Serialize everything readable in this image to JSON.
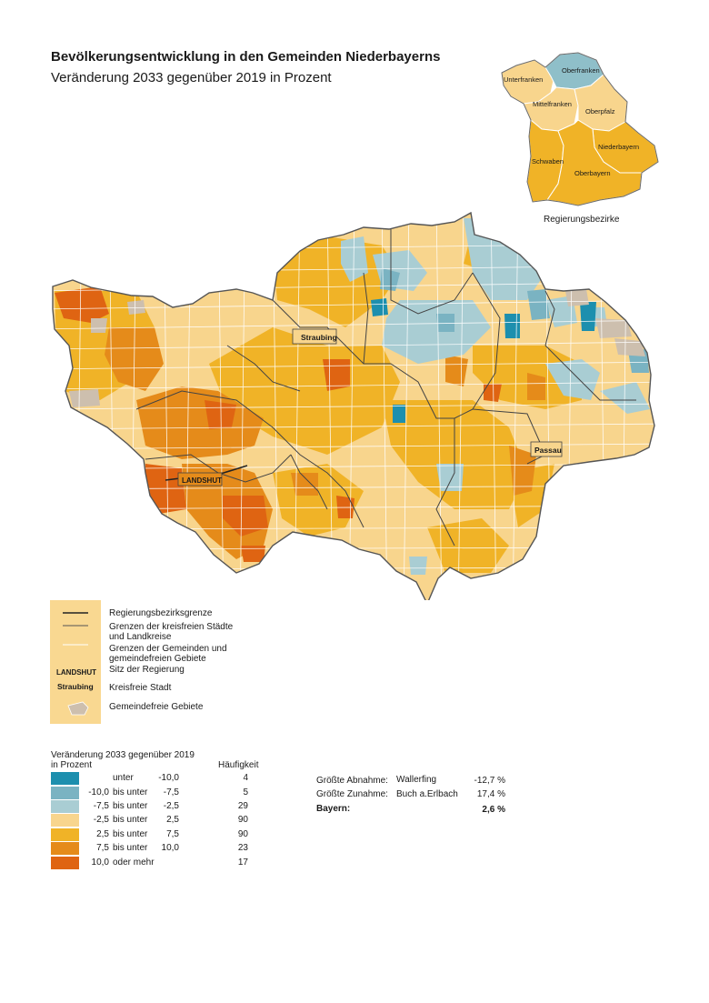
{
  "title": "Bevölkerungsentwicklung in den Gemeinden Niederbayerns",
  "subtitle": "Veränderung 2033 gegenüber 2019 in Prozent",
  "inset": {
    "caption": "Regierungsbezirke",
    "regions": [
      {
        "name": "Oberfranken",
        "class": "minus7_5",
        "color": "#8fbfc9"
      },
      {
        "name": "Unterfranken",
        "class": "minus2_5",
        "color": "#f8d58d"
      },
      {
        "name": "Mittelfranken",
        "class": "minus2_5",
        "color": "#f8d58d"
      },
      {
        "name": "Oberpfalz",
        "class": "minus2_5",
        "color": "#f8d58d"
      },
      {
        "name": "Niederbayern",
        "class": "plus2_5",
        "color": "#f0b327"
      },
      {
        "name": "Schwaben",
        "class": "plus2_5",
        "color": "#f0b327"
      },
      {
        "name": "Oberbayern",
        "class": "plus2_5",
        "color": "#f0b327"
      }
    ]
  },
  "map": {
    "cities": {
      "landshut": "LANDSHUT",
      "straubing": "Straubing",
      "passau": "Passau"
    }
  },
  "boundary_legend": {
    "items": [
      {
        "label": "Regierungsbezirksgrenze"
      },
      {
        "label": "Grenzen der kreisfreien Städte\nund Landkreise"
      },
      {
        "label": "Grenzen der Gemeinden und\ngemeindefreien Gebiete"
      },
      {
        "label": "Sitz der Regierung",
        "sample": "LANDSHUT"
      },
      {
        "label": "Kreisfreie Stadt",
        "sample": "Straubing"
      },
      {
        "label": "Gemeindefreie Gebiete"
      }
    ]
  },
  "classes": {
    "title": "Veränderung 2033 gegenüber 2019\nin Prozent",
    "frequency_header": "Häufigkeit",
    "rows": [
      {
        "from": "",
        "mid": "unter",
        "to": "-10,0",
        "count": "4",
        "color": "#1d8fae"
      },
      {
        "from": "-10,0",
        "mid": "bis unter",
        "to": "-7,5",
        "count": "5",
        "color": "#7ab3c2"
      },
      {
        "from": "-7,5",
        "mid": "bis unter",
        "to": "-2,5",
        "count": "29",
        "color": "#a9cdd3"
      },
      {
        "from": "-2,5",
        "mid": "bis unter",
        "to": "2,5",
        "count": "90",
        "color": "#f8d58d"
      },
      {
        "from": "2,5",
        "mid": "bis unter",
        "to": "7,5",
        "count": "90",
        "color": "#f0b327"
      },
      {
        "from": "7,5",
        "mid": "bis unter",
        "to": "10,0",
        "count": "23",
        "color": "#e58b1a"
      },
      {
        "from": "10,0",
        "mid": "oder mehr",
        "to": "",
        "count": "17",
        "color": "#df6412"
      }
    ]
  },
  "stats": {
    "largest_decrease": {
      "label": "Größte Abnahme:",
      "place": "Wallerfing",
      "value": "-12,7 %"
    },
    "largest_increase": {
      "label": "Größte Zunahme:",
      "place": "Buch a.Erlbach",
      "value": "17,4 %"
    },
    "bayern": {
      "label": "Bayern:",
      "value": "2,6 %"
    }
  },
  "colors": {
    "border_dark": "#4a4a4a",
    "muni_border": "#ffffff",
    "unincorporated": "#cdbfae",
    "legend_panel": "#f9d891"
  }
}
